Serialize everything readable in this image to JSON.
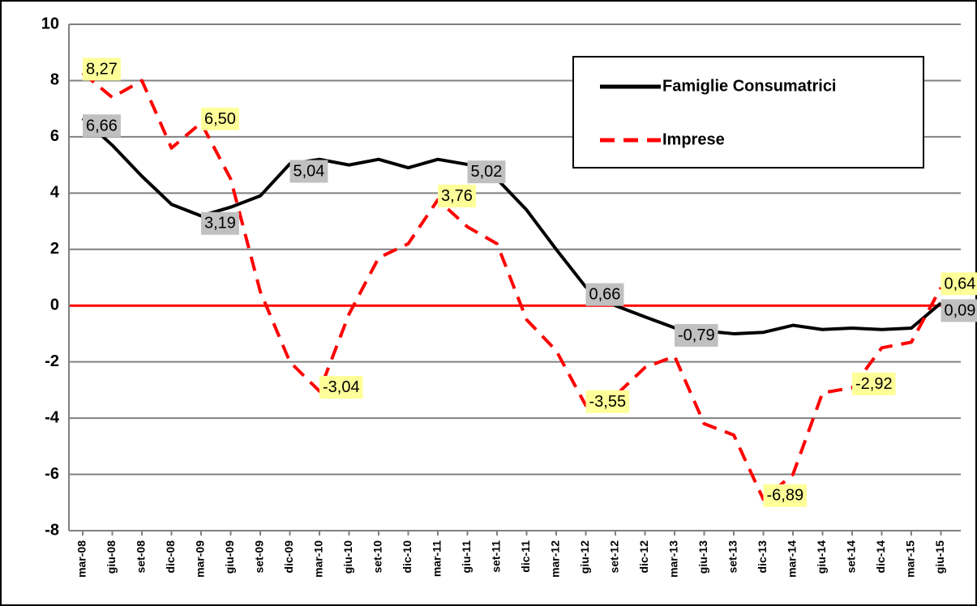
{
  "chart_data": {
    "type": "line",
    "categories": [
      "mar-08",
      "giu-08",
      "set-08",
      "dic-08",
      "mar-09",
      "giu-09",
      "set-09",
      "dic-09",
      "mar-10",
      "giu-10",
      "set-10",
      "dic-10",
      "mar-11",
      "giu-11",
      "set-11",
      "dic-11",
      "mar-12",
      "giu-12",
      "set-12",
      "dic-12",
      "mar-13",
      "giu-13",
      "set-13",
      "dic-13",
      "mar-14",
      "giu-14",
      "set-14",
      "dic-14",
      "mar-15",
      "giu-15"
    ],
    "series": [
      {
        "name": "Famiglie Consumatrici",
        "color": "#000000",
        "dash": false,
        "label_color": "#c0c0c0",
        "values": [
          6.66,
          5.7,
          4.6,
          3.6,
          3.19,
          3.5,
          3.9,
          5.04,
          5.2,
          5.0,
          5.2,
          4.9,
          5.2,
          5.02,
          4.5,
          3.4,
          2.0,
          0.66,
          0.0,
          -0.4,
          -0.79,
          -0.9,
          -1.0,
          -0.95,
          -0.7,
          -0.85,
          -0.8,
          -0.85,
          -0.8,
          0.09
        ],
        "value_labels": [
          "6,66",
          null,
          null,
          null,
          "3,19",
          null,
          null,
          "5,04",
          null,
          null,
          null,
          null,
          null,
          "5,02",
          null,
          null,
          null,
          "0,66",
          null,
          null,
          "-0,79",
          null,
          null,
          null,
          null,
          null,
          null,
          null,
          null,
          "0,09"
        ]
      },
      {
        "name": "Imprese",
        "color": "#ff0000",
        "dash": true,
        "label_color": "#ffff99",
        "values": [
          8.27,
          7.4,
          8.0,
          5.6,
          6.5,
          4.5,
          0.5,
          -2.0,
          -3.04,
          -0.3,
          1.7,
          2.2,
          3.76,
          2.8,
          2.2,
          -0.5,
          -1.6,
          -3.55,
          -3.2,
          -2.2,
          -1.8,
          -4.2,
          -4.6,
          -6.89,
          -6.0,
          -3.1,
          -2.92,
          -1.5,
          -1.3,
          0.64
        ],
        "value_labels": [
          "8,27",
          null,
          null,
          null,
          "6,50",
          null,
          null,
          null,
          "-3,04",
          null,
          null,
          null,
          "3,76",
          null,
          null,
          null,
          null,
          "-3,55",
          null,
          null,
          null,
          null,
          null,
          "-6,89",
          null,
          null,
          "-2,92",
          null,
          null,
          "0,64"
        ]
      }
    ],
    "ylim": [
      -8,
      10
    ],
    "yticks": [
      -8,
      -6,
      -4,
      -2,
      0,
      2,
      4,
      6,
      8,
      10
    ],
    "grid": true,
    "legend": "upper right"
  }
}
